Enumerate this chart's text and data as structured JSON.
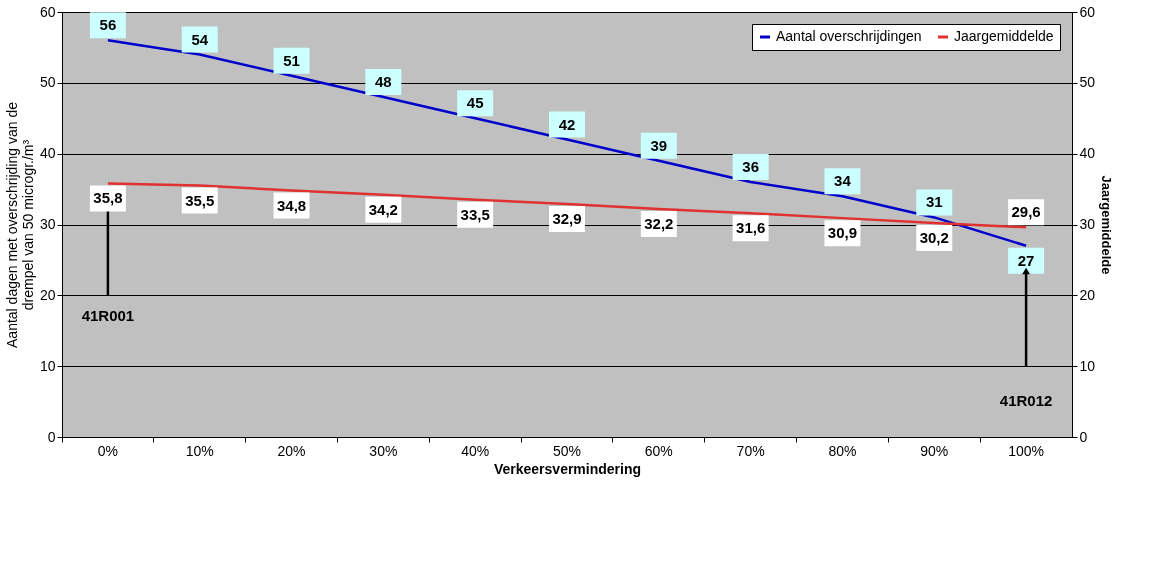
{
  "chart_data": {
    "type": "line",
    "categories": [
      "0%",
      "10%",
      "20%",
      "30%",
      "40%",
      "50%",
      "60%",
      "70%",
      "80%",
      "90%",
      "100%"
    ],
    "series": [
      {
        "name": "Aantal overschrijdingen",
        "color": "#0000cc",
        "values": [
          56,
          54,
          51,
          48,
          45,
          42,
          39,
          36,
          34,
          31,
          27
        ],
        "value_labels": [
          "56",
          "54",
          "51",
          "48",
          "45",
          "42",
          "39",
          "36",
          "34",
          "31",
          "27"
        ]
      },
      {
        "name": "Jaargemiddelde",
        "color": "#e03030",
        "axis": "y2",
        "values": [
          35.8,
          35.5,
          34.8,
          34.2,
          33.5,
          32.9,
          32.2,
          31.6,
          30.9,
          30.2,
          29.6
        ],
        "value_labels": [
          "35,8",
          "35,5",
          "34,8",
          "34,2",
          "33,5",
          "32,9",
          "32,2",
          "31,6",
          "30,9",
          "30,2",
          "29,6"
        ]
      }
    ],
    "xlabel": "Verkeersvermindering",
    "ylabel": "Aantal dagen met overschrijding van de\ndrempel van 50 microgr./m³",
    "y2label": "Jaargemiddelde",
    "ylim": [
      0,
      60
    ],
    "yticks": [
      0,
      10,
      20,
      30,
      40,
      50,
      60
    ],
    "y2lim": [
      0,
      60
    ],
    "y2ticks": [
      0,
      10,
      20,
      30,
      40,
      50,
      60
    ],
    "annotations": [
      "41R001",
      "41R012"
    ],
    "grid": "y",
    "legend": "top right",
    "marker": "none",
    "line_style": "solid"
  }
}
